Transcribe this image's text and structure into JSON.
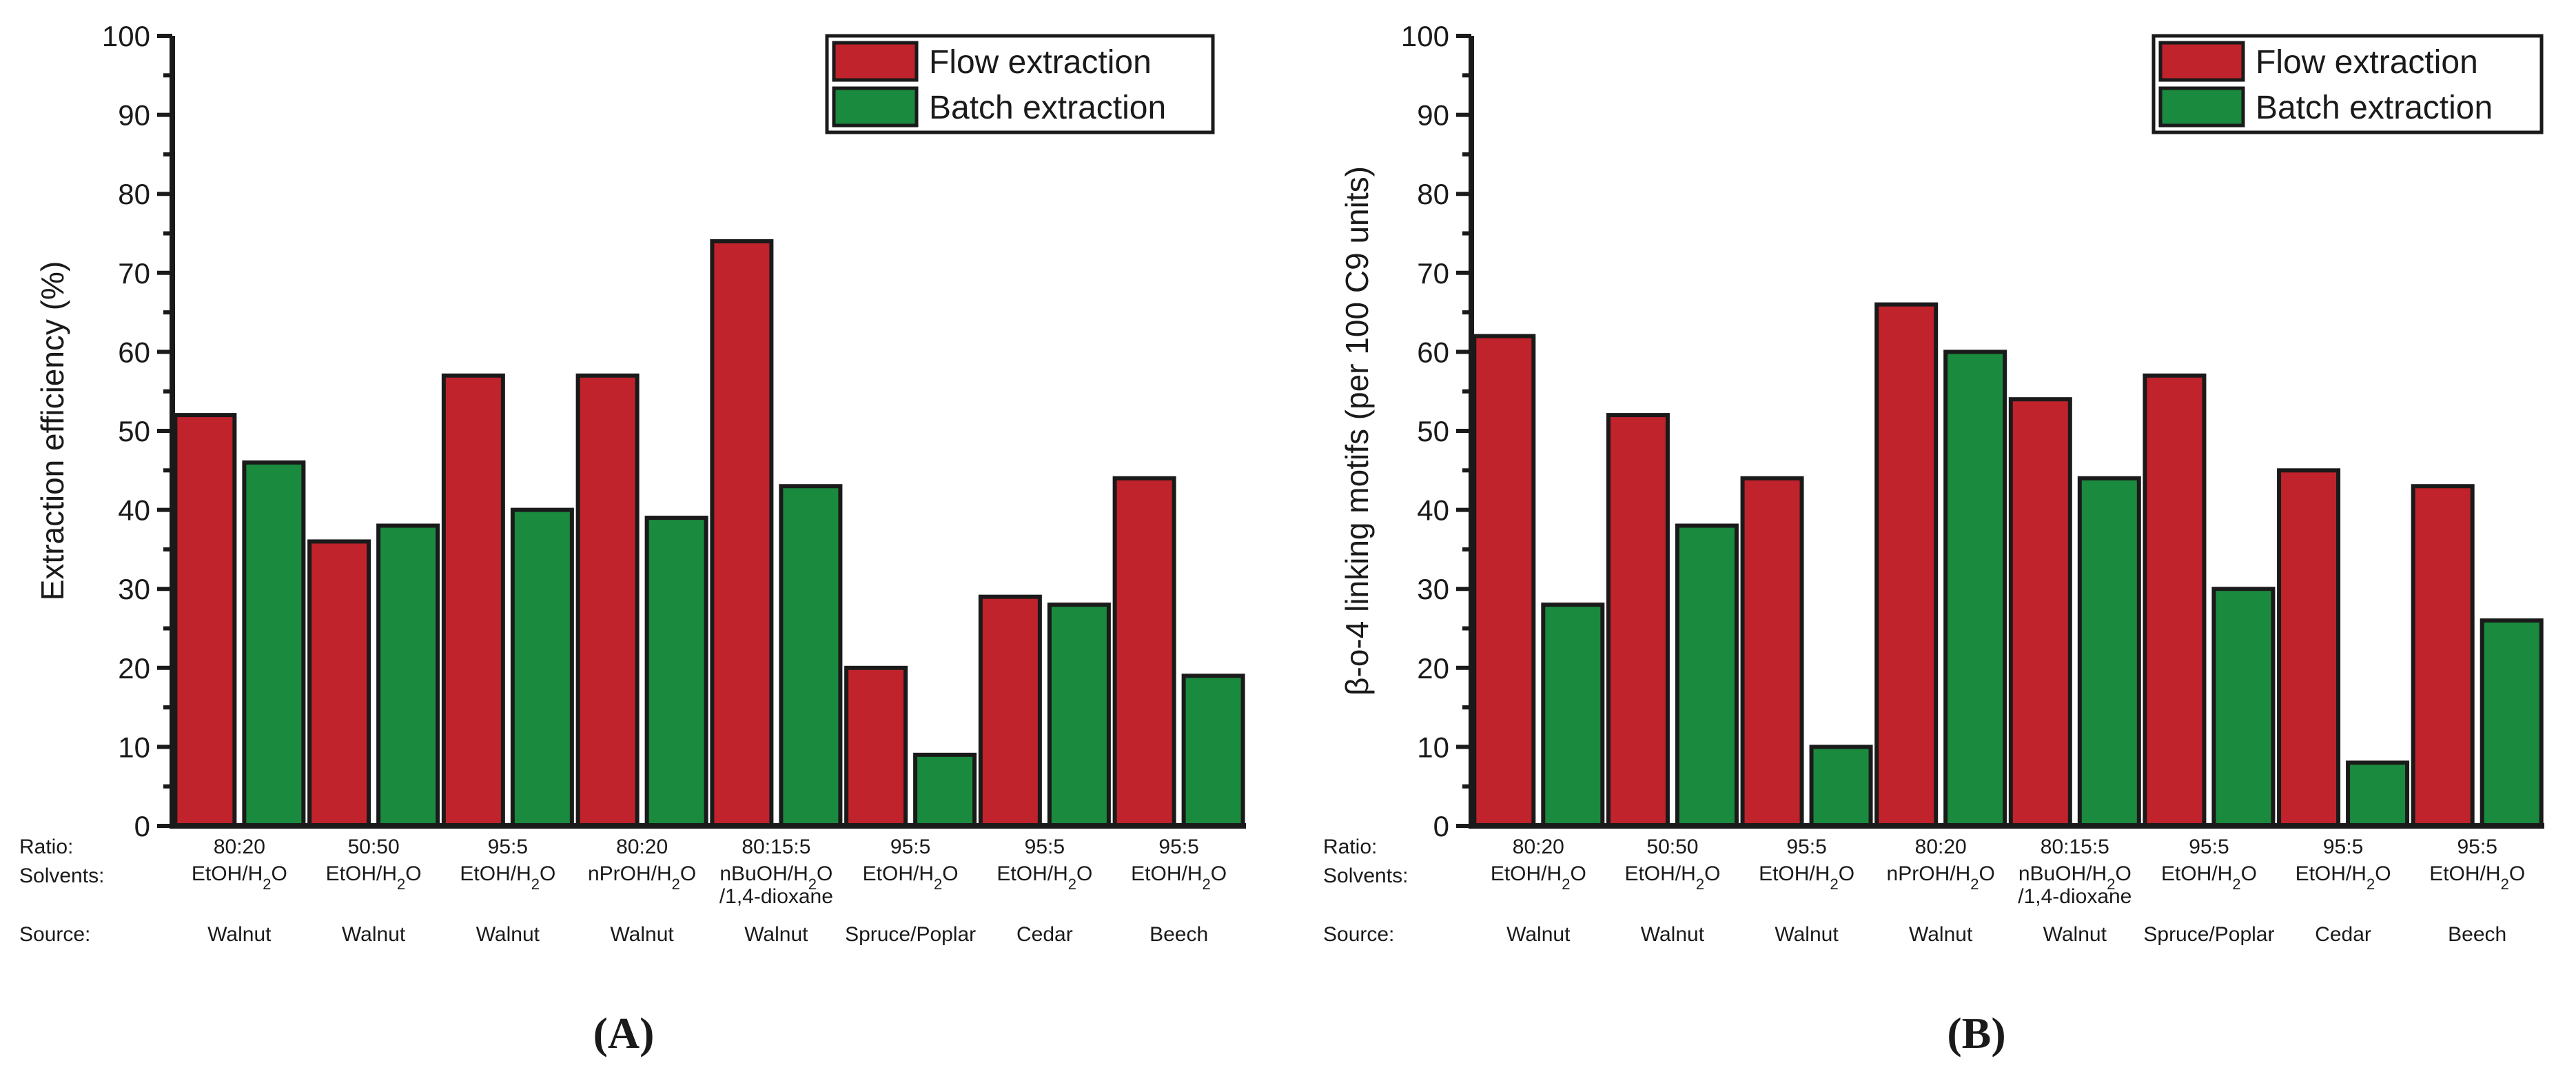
{
  "colors": {
    "flow": "#c0232b",
    "batch": "#1a8a3e",
    "axis": "#1a1a1a"
  },
  "row_labels": {
    "ratio": "Ratio:",
    "solvents": "Solvents:",
    "source": "Source:"
  },
  "chart_data": [
    {
      "type": "bar",
      "panel_label": "(A)",
      "ylabel": "Extraction efficiency (%)",
      "ylim": [
        0,
        100
      ],
      "yticks": [
        "0",
        "10",
        "20",
        "30",
        "40",
        "50",
        "60",
        "70",
        "80",
        "90",
        "100"
      ],
      "legend": [
        "Flow extraction",
        "Batch extraction"
      ],
      "legend_position": "top-right",
      "categories": [
        {
          "ratio": "80:20",
          "solvent_lines": [
            [
              "EtOH/H",
              "2",
              "O"
            ]
          ],
          "source": "Walnut"
        },
        {
          "ratio": "50:50",
          "solvent_lines": [
            [
              "EtOH/H",
              "2",
              "O"
            ]
          ],
          "source": "Walnut"
        },
        {
          "ratio": "95:5",
          "solvent_lines": [
            [
              "EtOH/H",
              "2",
              "O"
            ]
          ],
          "source": "Walnut"
        },
        {
          "ratio": "80:20",
          "solvent_lines": [
            [
              "nPrOH/H",
              "2",
              "O"
            ]
          ],
          "source": "Walnut"
        },
        {
          "ratio": "80:15:5",
          "solvent_lines": [
            [
              "nBuOH/H",
              "2",
              "O"
            ],
            [
              "/1,4-dioxane",
              "",
              ""
            ]
          ],
          "source": "Walnut"
        },
        {
          "ratio": "95:5",
          "solvent_lines": [
            [
              "EtOH/H",
              "2",
              "O"
            ]
          ],
          "source": "Spruce/Poplar"
        },
        {
          "ratio": "95:5",
          "solvent_lines": [
            [
              "EtOH/H",
              "2",
              "O"
            ]
          ],
          "source": "Cedar"
        },
        {
          "ratio": "95:5",
          "solvent_lines": [
            [
              "EtOH/H",
              "2",
              "O"
            ]
          ],
          "source": "Beech"
        }
      ],
      "series": [
        {
          "name": "Flow extraction",
          "values": [
            52,
            36,
            57,
            57,
            74,
            20,
            29,
            44
          ]
        },
        {
          "name": "Batch extraction",
          "values": [
            46,
            38,
            40,
            39,
            43,
            9,
            28,
            19
          ]
        }
      ]
    },
    {
      "type": "bar",
      "panel_label": "(B)",
      "ylabel": "β-o-4 linking motifs (per 100 C9 units)",
      "ylim": [
        0,
        100
      ],
      "yticks": [
        "0",
        "10",
        "20",
        "30",
        "40",
        "50",
        "60",
        "70",
        "80",
        "90",
        "100"
      ],
      "legend": [
        "Flow extraction",
        "Batch extraction"
      ],
      "legend_position": "top-right",
      "categories": [
        {
          "ratio": "80:20",
          "solvent_lines": [
            [
              "EtOH/H",
              "2",
              "O"
            ]
          ],
          "source": "Walnut"
        },
        {
          "ratio": "50:50",
          "solvent_lines": [
            [
              "EtOH/H",
              "2",
              "O"
            ]
          ],
          "source": "Walnut"
        },
        {
          "ratio": "95:5",
          "solvent_lines": [
            [
              "EtOH/H",
              "2",
              "O"
            ]
          ],
          "source": "Walnut"
        },
        {
          "ratio": "80:20",
          "solvent_lines": [
            [
              "nPrOH/H",
              "2",
              "O"
            ]
          ],
          "source": "Walnut"
        },
        {
          "ratio": "80:15:5",
          "solvent_lines": [
            [
              "nBuOH/H",
              "2",
              "O"
            ],
            [
              "/1,4-dioxane",
              "",
              ""
            ]
          ],
          "source": "Walnut"
        },
        {
          "ratio": "95:5",
          "solvent_lines": [
            [
              "EtOH/H",
              "2",
              "O"
            ]
          ],
          "source": "Spruce/Poplar"
        },
        {
          "ratio": "95:5",
          "solvent_lines": [
            [
              "EtOH/H",
              "2",
              "O"
            ]
          ],
          "source": "Cedar"
        },
        {
          "ratio": "95:5",
          "solvent_lines": [
            [
              "EtOH/H",
              "2",
              "O"
            ]
          ],
          "source": "Beech"
        }
      ],
      "series": [
        {
          "name": "Flow extraction",
          "values": [
            62,
            52,
            44,
            66,
            54,
            57,
            45,
            43
          ]
        },
        {
          "name": "Batch extraction",
          "values": [
            28,
            38,
            10,
            60,
            44,
            30,
            8,
            26
          ]
        }
      ]
    }
  ]
}
